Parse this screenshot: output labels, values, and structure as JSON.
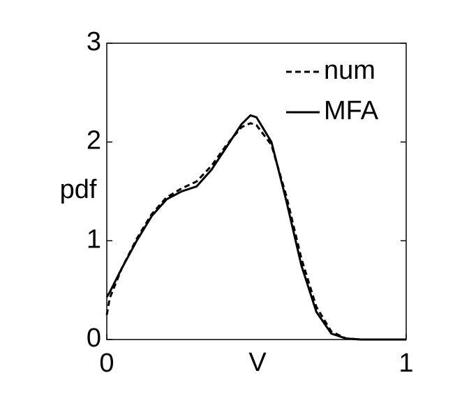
{
  "chart_data": {
    "type": "line",
    "xlabel": "V",
    "ylabel": "pdf",
    "x": [
      0,
      0.01,
      0.05,
      0.1,
      0.15,
      0.2,
      0.25,
      0.3,
      0.35,
      0.4,
      0.45,
      0.48,
      0.5,
      0.55,
      0.6,
      0.65,
      0.7,
      0.75,
      0.8,
      0.85,
      0.9,
      0.95,
      1
    ],
    "series": [
      {
        "name": "num",
        "color": "#000000",
        "dash": true,
        "values": [
          0.25,
          0.42,
          0.72,
          1.02,
          1.27,
          1.44,
          1.53,
          1.6,
          1.76,
          1.97,
          2.15,
          2.19,
          2.17,
          1.97,
          1.45,
          0.82,
          0.33,
          0.08,
          0.01,
          0,
          0,
          0,
          0
        ]
      },
      {
        "name": "MFA",
        "color": "#000000",
        "dash": false,
        "values": [
          0.43,
          0.48,
          0.72,
          1.0,
          1.25,
          1.42,
          1.5,
          1.55,
          1.72,
          1.95,
          2.18,
          2.27,
          2.25,
          2.0,
          1.4,
          0.75,
          0.28,
          0.06,
          0.01,
          0,
          0,
          0,
          0
        ]
      }
    ],
    "xlim": [
      0,
      1
    ],
    "xticks": [
      0,
      1
    ],
    "ylim": [
      0,
      3
    ],
    "yticks": [
      0,
      1,
      2,
      3
    ],
    "legend": "upper right"
  }
}
